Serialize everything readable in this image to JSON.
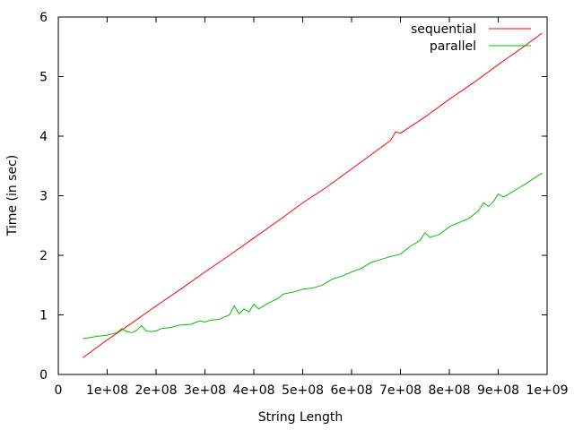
{
  "chart_data": {
    "type": "line",
    "title": "",
    "xlabel": "String Length",
    "ylabel": "Time (in sec)",
    "xlim": [
      0,
      1000000000
    ],
    "ylim": [
      0,
      6
    ],
    "grid": false,
    "legend": "top-right",
    "x_ticks": [
      {
        "value": 0,
        "label": "0"
      },
      {
        "value": 100000000,
        "label": "1e+08"
      },
      {
        "value": 200000000,
        "label": "2e+08"
      },
      {
        "value": 300000000,
        "label": "3e+08"
      },
      {
        "value": 400000000,
        "label": "4e+08"
      },
      {
        "value": 500000000,
        "label": "5e+08"
      },
      {
        "value": 600000000,
        "label": "6e+08"
      },
      {
        "value": 700000000,
        "label": "7e+08"
      },
      {
        "value": 800000000,
        "label": "8e+08"
      },
      {
        "value": 900000000,
        "label": "9e+08"
      },
      {
        "value": 1000000000,
        "label": "1e+09"
      }
    ],
    "y_ticks": [
      {
        "value": 0,
        "label": "0"
      },
      {
        "value": 1,
        "label": "1"
      },
      {
        "value": 2,
        "label": "2"
      },
      {
        "value": 3,
        "label": "3"
      },
      {
        "value": 4,
        "label": "4"
      },
      {
        "value": 5,
        "label": "5"
      },
      {
        "value": 6,
        "label": "6"
      }
    ],
    "series": [
      {
        "name": "sequential",
        "color": "#ff0000",
        "points": [
          [
            50000000,
            0.28
          ],
          [
            100000000,
            0.58
          ],
          [
            150000000,
            0.86
          ],
          [
            200000000,
            1.15
          ],
          [
            250000000,
            1.43
          ],
          [
            300000000,
            1.72
          ],
          [
            350000000,
            2.0
          ],
          [
            400000000,
            2.29
          ],
          [
            450000000,
            2.58
          ],
          [
            500000000,
            2.88
          ],
          [
            550000000,
            3.15
          ],
          [
            600000000,
            3.45
          ],
          [
            650000000,
            3.75
          ],
          [
            680000000,
            3.93
          ],
          [
            690000000,
            4.07
          ],
          [
            700000000,
            4.05
          ],
          [
            750000000,
            4.32
          ],
          [
            800000000,
            4.62
          ],
          [
            850000000,
            4.9
          ],
          [
            900000000,
            5.2
          ],
          [
            950000000,
            5.49
          ],
          [
            990000000,
            5.73
          ]
        ]
      },
      {
        "name": "parallel",
        "color": "#00c000",
        "points": [
          [
            50000000,
            0.6
          ],
          [
            80000000,
            0.64
          ],
          [
            100000000,
            0.66
          ],
          [
            120000000,
            0.7
          ],
          [
            130000000,
            0.77
          ],
          [
            140000000,
            0.72
          ],
          [
            150000000,
            0.7
          ],
          [
            160000000,
            0.74
          ],
          [
            170000000,
            0.82
          ],
          [
            180000000,
            0.73
          ],
          [
            190000000,
            0.72
          ],
          [
            200000000,
            0.73
          ],
          [
            210000000,
            0.77
          ],
          [
            230000000,
            0.79
          ],
          [
            250000000,
            0.83
          ],
          [
            270000000,
            0.84
          ],
          [
            290000000,
            0.9
          ],
          [
            300000000,
            0.88
          ],
          [
            310000000,
            0.91
          ],
          [
            330000000,
            0.93
          ],
          [
            350000000,
            1.0
          ],
          [
            360000000,
            1.15
          ],
          [
            370000000,
            1.02
          ],
          [
            380000000,
            1.1
          ],
          [
            390000000,
            1.05
          ],
          [
            400000000,
            1.18
          ],
          [
            410000000,
            1.1
          ],
          [
            430000000,
            1.2
          ],
          [
            450000000,
            1.28
          ],
          [
            460000000,
            1.35
          ],
          [
            480000000,
            1.38
          ],
          [
            500000000,
            1.43
          ],
          [
            520000000,
            1.45
          ],
          [
            540000000,
            1.5
          ],
          [
            560000000,
            1.6
          ],
          [
            580000000,
            1.65
          ],
          [
            600000000,
            1.72
          ],
          [
            620000000,
            1.78
          ],
          [
            640000000,
            1.88
          ],
          [
            660000000,
            1.93
          ],
          [
            680000000,
            1.98
          ],
          [
            700000000,
            2.02
          ],
          [
            720000000,
            2.15
          ],
          [
            740000000,
            2.25
          ],
          [
            750000000,
            2.38
          ],
          [
            760000000,
            2.3
          ],
          [
            780000000,
            2.35
          ],
          [
            800000000,
            2.48
          ],
          [
            820000000,
            2.55
          ],
          [
            840000000,
            2.62
          ],
          [
            860000000,
            2.75
          ],
          [
            870000000,
            2.88
          ],
          [
            880000000,
            2.82
          ],
          [
            890000000,
            2.9
          ],
          [
            900000000,
            3.03
          ],
          [
            910000000,
            2.98
          ],
          [
            920000000,
            3.02
          ],
          [
            940000000,
            3.12
          ],
          [
            960000000,
            3.22
          ],
          [
            980000000,
            3.33
          ],
          [
            990000000,
            3.38
          ]
        ]
      }
    ]
  }
}
